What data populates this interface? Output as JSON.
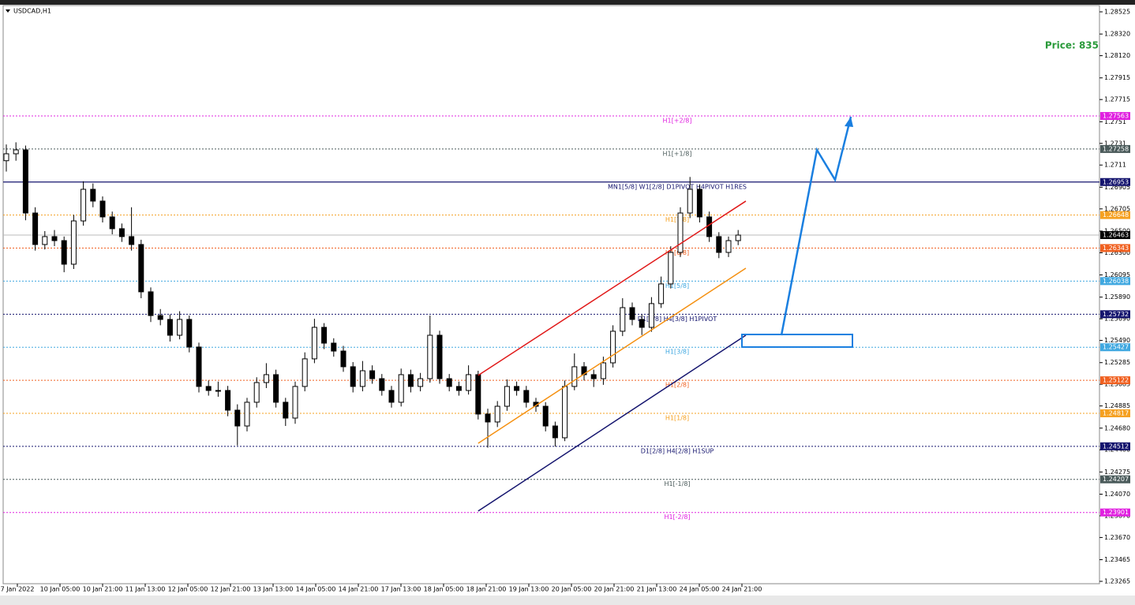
{
  "chart_data": {
    "type": "candlestick",
    "title": "USDCAD,H1",
    "annotation": "Price: 835",
    "x_labels": [
      "7 Jan 2022",
      "10 Jan 05:00",
      "10 Jan 21:00",
      "11 Jan 13:00",
      "12 Jan 05:00",
      "12 Jan 21:00",
      "13 Jan 13:00",
      "14 Jan 05:00",
      "14 Jan 21:00",
      "17 Jan 13:00",
      "18 Jan 05:00",
      "18 Jan 21:00",
      "19 Jan 13:00",
      "20 Jan 05:00",
      "20 Jan 21:00",
      "21 Jan 13:00",
      "24 Jan 05:00",
      "24 Jan 21:00"
    ],
    "ylim": [
      1.23265,
      1.28525
    ],
    "yticks": [
      1.28525,
      {
        "value": 1.2832,
        "label": "1.28320"
      },
      {
        "value": 1.2812,
        "label": "1.28120"
      },
      1.27915,
      1.27715,
      1.2751,
      1.2731,
      1.2711,
      1.26905,
      1.26705,
      {
        "value": 1.265,
        "label": "1.26500"
      },
      {
        "value": 1.263,
        "label": "1.26300"
      },
      1.26095,
      {
        "value": 1.2589,
        "label": "1.25890"
      },
      {
        "value": 1.2569,
        "label": "1.25690"
      },
      {
        "value": 1.2549,
        "label": "1.25490"
      },
      1.25285,
      1.25085,
      1.24885,
      {
        "value": 1.2468,
        "label": "1.24680"
      },
      {
        "value": 1.2448,
        "label": "1.24480"
      },
      1.24275,
      {
        "value": 1.2407,
        "label": "1.24070"
      },
      {
        "value": 1.2387,
        "label": "1.23870"
      },
      {
        "value": 1.2367,
        "label": "1.23670"
      },
      1.23465,
      1.23265
    ],
    "open": [
      1.2715,
      1.27214,
      1.2725,
      1.26667,
      1.26376,
      1.26449,
      1.26412,
      1.26194,
      1.26594,
      1.26886,
      1.26777,
      1.26631,
      1.26522,
      1.26449,
      1.26376,
      1.25939,
      1.2572,
      1.25684,
      1.25538,
      1.25684,
      1.25429,
      1.25065,
      1.25028,
      1.25028,
      1.24846,
      1.247,
      1.24919,
      1.25101,
      1.25174,
      1.24919,
      1.24773,
      1.25065,
      1.2532,
      1.25611,
      1.25465,
      1.25392,
      1.25247,
      1.25065,
      1.2521,
      1.25137,
      1.25028,
      1.24919,
      1.25174,
      1.25065,
      1.25137,
      1.25538,
      1.25137,
      1.25065,
      1.25028,
      1.25174,
      1.2481,
      1.24737,
      1.24882,
      1.25065,
      1.25028,
      1.24919,
      1.24882,
      1.247,
      1.24591,
      1.25065,
      1.25247,
      1.25174,
      1.25137,
      1.25283,
      1.25575,
      1.25793,
      1.25684,
      1.25611,
      1.2583,
      1.26012,
      1.26303,
      1.26667,
      1.26886,
      1.26631,
      1.26449,
      1.26303,
      1.26412
    ],
    "high": [
      1.273,
      1.2732,
      1.2729,
      1.2672,
      1.265,
      1.2651,
      1.2645,
      1.2665,
      1.2696,
      1.2694,
      1.2682,
      1.2668,
      1.2657,
      1.2672,
      1.2642,
      1.2598,
      1.2578,
      1.2573,
      1.2576,
      1.2572,
      1.2547,
      1.2512,
      1.2511,
      1.2507,
      1.249,
      1.2496,
      1.2515,
      1.2528,
      1.2522,
      1.2496,
      1.2511,
      1.2538,
      1.2569,
      1.2565,
      1.2551,
      1.2544,
      1.2529,
      1.253,
      1.2526,
      1.2518,
      1.2507,
      1.2523,
      1.2522,
      1.2519,
      1.2572,
      1.2558,
      1.2518,
      1.2511,
      1.2526,
      1.2521,
      1.2486,
      1.2493,
      1.2513,
      1.2511,
      1.2507,
      1.2496,
      1.2492,
      1.2474,
      1.2512,
      1.2537,
      1.2529,
      1.2522,
      1.2534,
      1.2563,
      1.2588,
      1.2584,
      1.2573,
      1.2589,
      1.2608,
      1.2636,
      1.2672,
      1.27,
      1.2693,
      1.2668,
      1.2649,
      1.2645,
      1.2651
    ],
    "low": [
      1.2705,
      1.2715,
      1.266,
      1.2632,
      1.2633,
      1.2636,
      1.2612,
      1.2615,
      1.2655,
      1.2672,
      1.2658,
      1.2647,
      1.264,
      1.2632,
      1.2588,
      1.2566,
      1.2563,
      1.2548,
      1.255,
      1.2538,
      1.2501,
      1.2498,
      1.2497,
      1.2479,
      1.2452,
      1.2465,
      1.2487,
      1.2505,
      1.2487,
      1.247,
      1.2472,
      1.2502,
      1.2528,
      1.2541,
      1.2534,
      1.252,
      1.2501,
      1.2502,
      1.2509,
      1.2498,
      1.2487,
      1.2488,
      1.2501,
      1.2502,
      1.251,
      1.2509,
      1.2502,
      1.2498,
      1.2499,
      1.2476,
      1.245,
      1.2469,
      1.2484,
      1.2498,
      1.2487,
      1.2483,
      1.2465,
      1.2451,
      1.2456,
      1.2503,
      1.2512,
      1.2506,
      1.2508,
      1.2524,
      1.2553,
      1.2563,
      1.2554,
      1.2557,
      1.2579,
      1.2597,
      1.2626,
      1.2662,
      1.2658,
      1.264,
      1.2625,
      1.2626,
      1.2637
    ],
    "close": [
      1.27214,
      1.2725,
      1.26667,
      1.26376,
      1.26449,
      1.26412,
      1.26194,
      1.26594,
      1.26886,
      1.26777,
      1.26631,
      1.26522,
      1.26449,
      1.26376,
      1.25939,
      1.2572,
      1.25684,
      1.25538,
      1.25684,
      1.25429,
      1.25065,
      1.25028,
      1.25028,
      1.24846,
      1.247,
      1.24919,
      1.25101,
      1.25174,
      1.24919,
      1.24773,
      1.25065,
      1.2532,
      1.25611,
      1.25465,
      1.25392,
      1.25247,
      1.25065,
      1.2521,
      1.25137,
      1.25028,
      1.24919,
      1.25174,
      1.25065,
      1.25137,
      1.25538,
      1.25137,
      1.25065,
      1.25028,
      1.25174,
      1.2481,
      1.24737,
      1.24882,
      1.25065,
      1.25028,
      1.24919,
      1.24882,
      1.247,
      1.24591,
      1.25065,
      1.25247,
      1.25174,
      1.25137,
      1.25283,
      1.25575,
      1.25793,
      1.25684,
      1.25611,
      1.2583,
      1.26012,
      1.26303,
      1.26667,
      1.26886,
      1.26631,
      1.26449,
      1.26303,
      1.26412,
      1.26463
    ],
    "current_price": 1.26463,
    "levels": [
      {
        "label": "H1[+2/8]",
        "price": 1.27563,
        "color": "#e020e0"
      },
      {
        "label": "H1[+1/8]",
        "price": 1.27258,
        "color": "#4a5a5a"
      },
      {
        "label": "MN1[5/8] W1[2/8] D1PIVOT H4PIVOT H1RES",
        "price": 1.26953,
        "color": "#14146e"
      },
      {
        "label": "H1[7/8]",
        "price": 1.26648,
        "color": "#f5a020"
      },
      {
        "label": "H1[6/8]",
        "price": 1.26343,
        "color": "#f06020"
      },
      {
        "label": "H1[5/8]",
        "price": 1.26038,
        "color": "#40a8e0"
      },
      {
        "label": "D1[3/8] H4[3/8] H1PIVOT",
        "price": 1.25732,
        "color": "#14146e"
      },
      {
        "label": "H1[3/8]",
        "price": 1.25427,
        "color": "#40a8e0"
      },
      {
        "label": "H1[2/8]",
        "price": 1.25122,
        "color": "#f06020"
      },
      {
        "label": "H1[1/8]",
        "price": 1.24817,
        "color": "#f5a020"
      },
      {
        "label": "D1[2/8] H4[2/8] H1SUP",
        "price": 1.24512,
        "color": "#14146e"
      },
      {
        "label": "H1[-1/8]",
        "price": 1.24207,
        "color": "#4a5a5a"
      },
      {
        "label": "H1[-2/8]",
        "price": 1.23901,
        "color": "#e020e0"
      }
    ],
    "trendlines": [
      {
        "color": "#e01818",
        "start": 1.25167,
        "end": 1.26777
      },
      {
        "color": "#f59010",
        "start": 1.2454,
        "end": 1.26157
      },
      {
        "color": "#14146e",
        "start": 1.23914,
        "end": 1.25538
      }
    ],
    "zone": {
      "color": "#1a7fe0",
      "top": 1.25545,
      "bottom": 1.25429
    }
  }
}
